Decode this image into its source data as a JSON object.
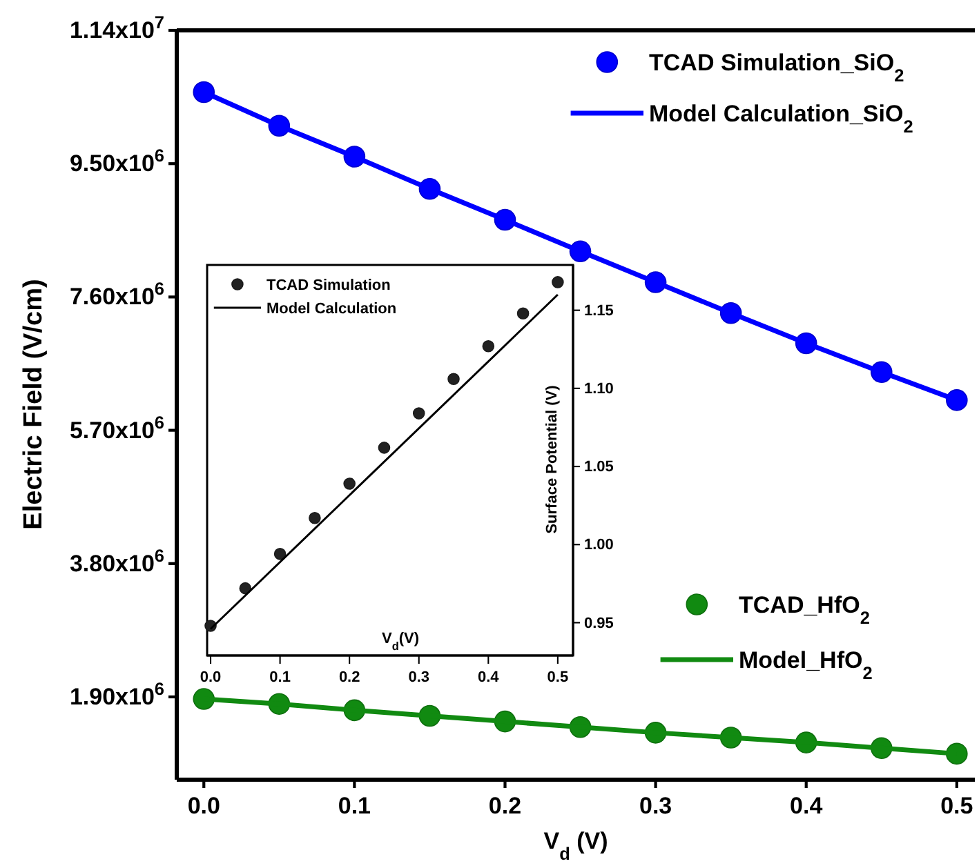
{
  "chart_data": [
    {
      "type": "scatter",
      "xlabel": "V$_{d}$ (V)",
      "ylabel": "Electric Field (V/cm)",
      "x": [
        0,
        0.05,
        0.1,
        0.15,
        0.2,
        0.25,
        0.3,
        0.35,
        0.4,
        0.45,
        0.5
      ],
      "xlim": [
        -0.018,
        0.512
      ],
      "xticks": [
        {
          "value": 0,
          "label": "0.0"
        },
        0.1,
        0.2,
        0.3,
        0.4,
        0.5
      ],
      "ylim": [
        720000,
        11400000
      ],
      "yticks": [
        {
          "value": 1900000,
          "label": "1.90x10$^{6}$"
        },
        {
          "value": 3800000,
          "label": "3.80x10$^{6}$"
        },
        {
          "value": 5700000,
          "label": "5.70x10$^{6}$"
        },
        {
          "value": 7600000,
          "label": "7.60x10$^{6}$"
        },
        {
          "value": 9500000,
          "label": "9.50x10$^{6}$"
        },
        {
          "value": 11400000,
          "label": "1.14x10$^{7}$"
        }
      ],
      "grid": false,
      "legend": "top right",
      "line_style": "solid",
      "series": [
        {
          "name": "TCAD Simulation_SiO$_{2}$",
          "marker": "circle",
          "color": "#0000ff",
          "values": [
            10520000,
            10040000,
            9600000,
            9140000,
            8700000,
            8250000,
            7810000,
            7370000,
            6940000,
            6530000,
            6130000
          ]
        },
        {
          "name": "Model Calculation_SiO$_{2}$",
          "type": "line",
          "marker": "none",
          "color": "#0000ff",
          "values": [
            10520000,
            10040000,
            9600000,
            9140000,
            8700000,
            8250000,
            7810000,
            7370000,
            6940000,
            6530000,
            6130000
          ]
        },
        {
          "name": "TCAD_HfO$_{2}$",
          "marker": "circle",
          "color": "#118a11",
          "values": [
            1870000,
            1800000,
            1710000,
            1630000,
            1550000,
            1470000,
            1390000,
            1320000,
            1250000,
            1170000,
            1090000
          ]
        },
        {
          "name": "Model_HfO$_{2}$",
          "type": "line",
          "marker": "none",
          "color": "#118a11",
          "values": [
            1870000,
            1800000,
            1710000,
            1630000,
            1550000,
            1470000,
            1390000,
            1320000,
            1250000,
            1170000,
            1090000
          ]
        }
      ]
    },
    {
      "type": "scatter",
      "xlabel": "V$_{d}$(V)",
      "ylabel": "Surface Potential (V)",
      "x": [
        0,
        0.05,
        0.1,
        0.15,
        0.2,
        0.25,
        0.3,
        0.35,
        0.4,
        0.45,
        0.5
      ],
      "xlim": [
        -0.005,
        0.522
      ],
      "xticks": [
        {
          "value": 0,
          "label": "0.0"
        },
        0.1,
        0.2,
        0.3,
        0.4,
        0.5
      ],
      "ylim": [
        0.929,
        1.179
      ],
      "yticks": [
        0.95,
        {
          "value": 1,
          "label": "1.00"
        },
        1.05,
        {
          "value": 1.1,
          "label": "1.10"
        },
        1.15
      ],
      "grid": false,
      "legend": "top left",
      "line_style": "solid",
      "series": [
        {
          "name": "TCAD Simulation",
          "marker": "circle",
          "color": "#222222",
          "values": [
            0.948,
            0.972,
            0.994,
            1.017,
            1.039,
            1.062,
            1.084,
            1.106,
            1.127,
            1.148,
            1.168
          ]
        },
        {
          "name": "Model Calculation",
          "type": "line",
          "marker": "none",
          "color": "#000000",
          "x": [
            0,
            0.5
          ],
          "values": [
            0.946,
            1.16
          ]
        }
      ]
    }
  ]
}
